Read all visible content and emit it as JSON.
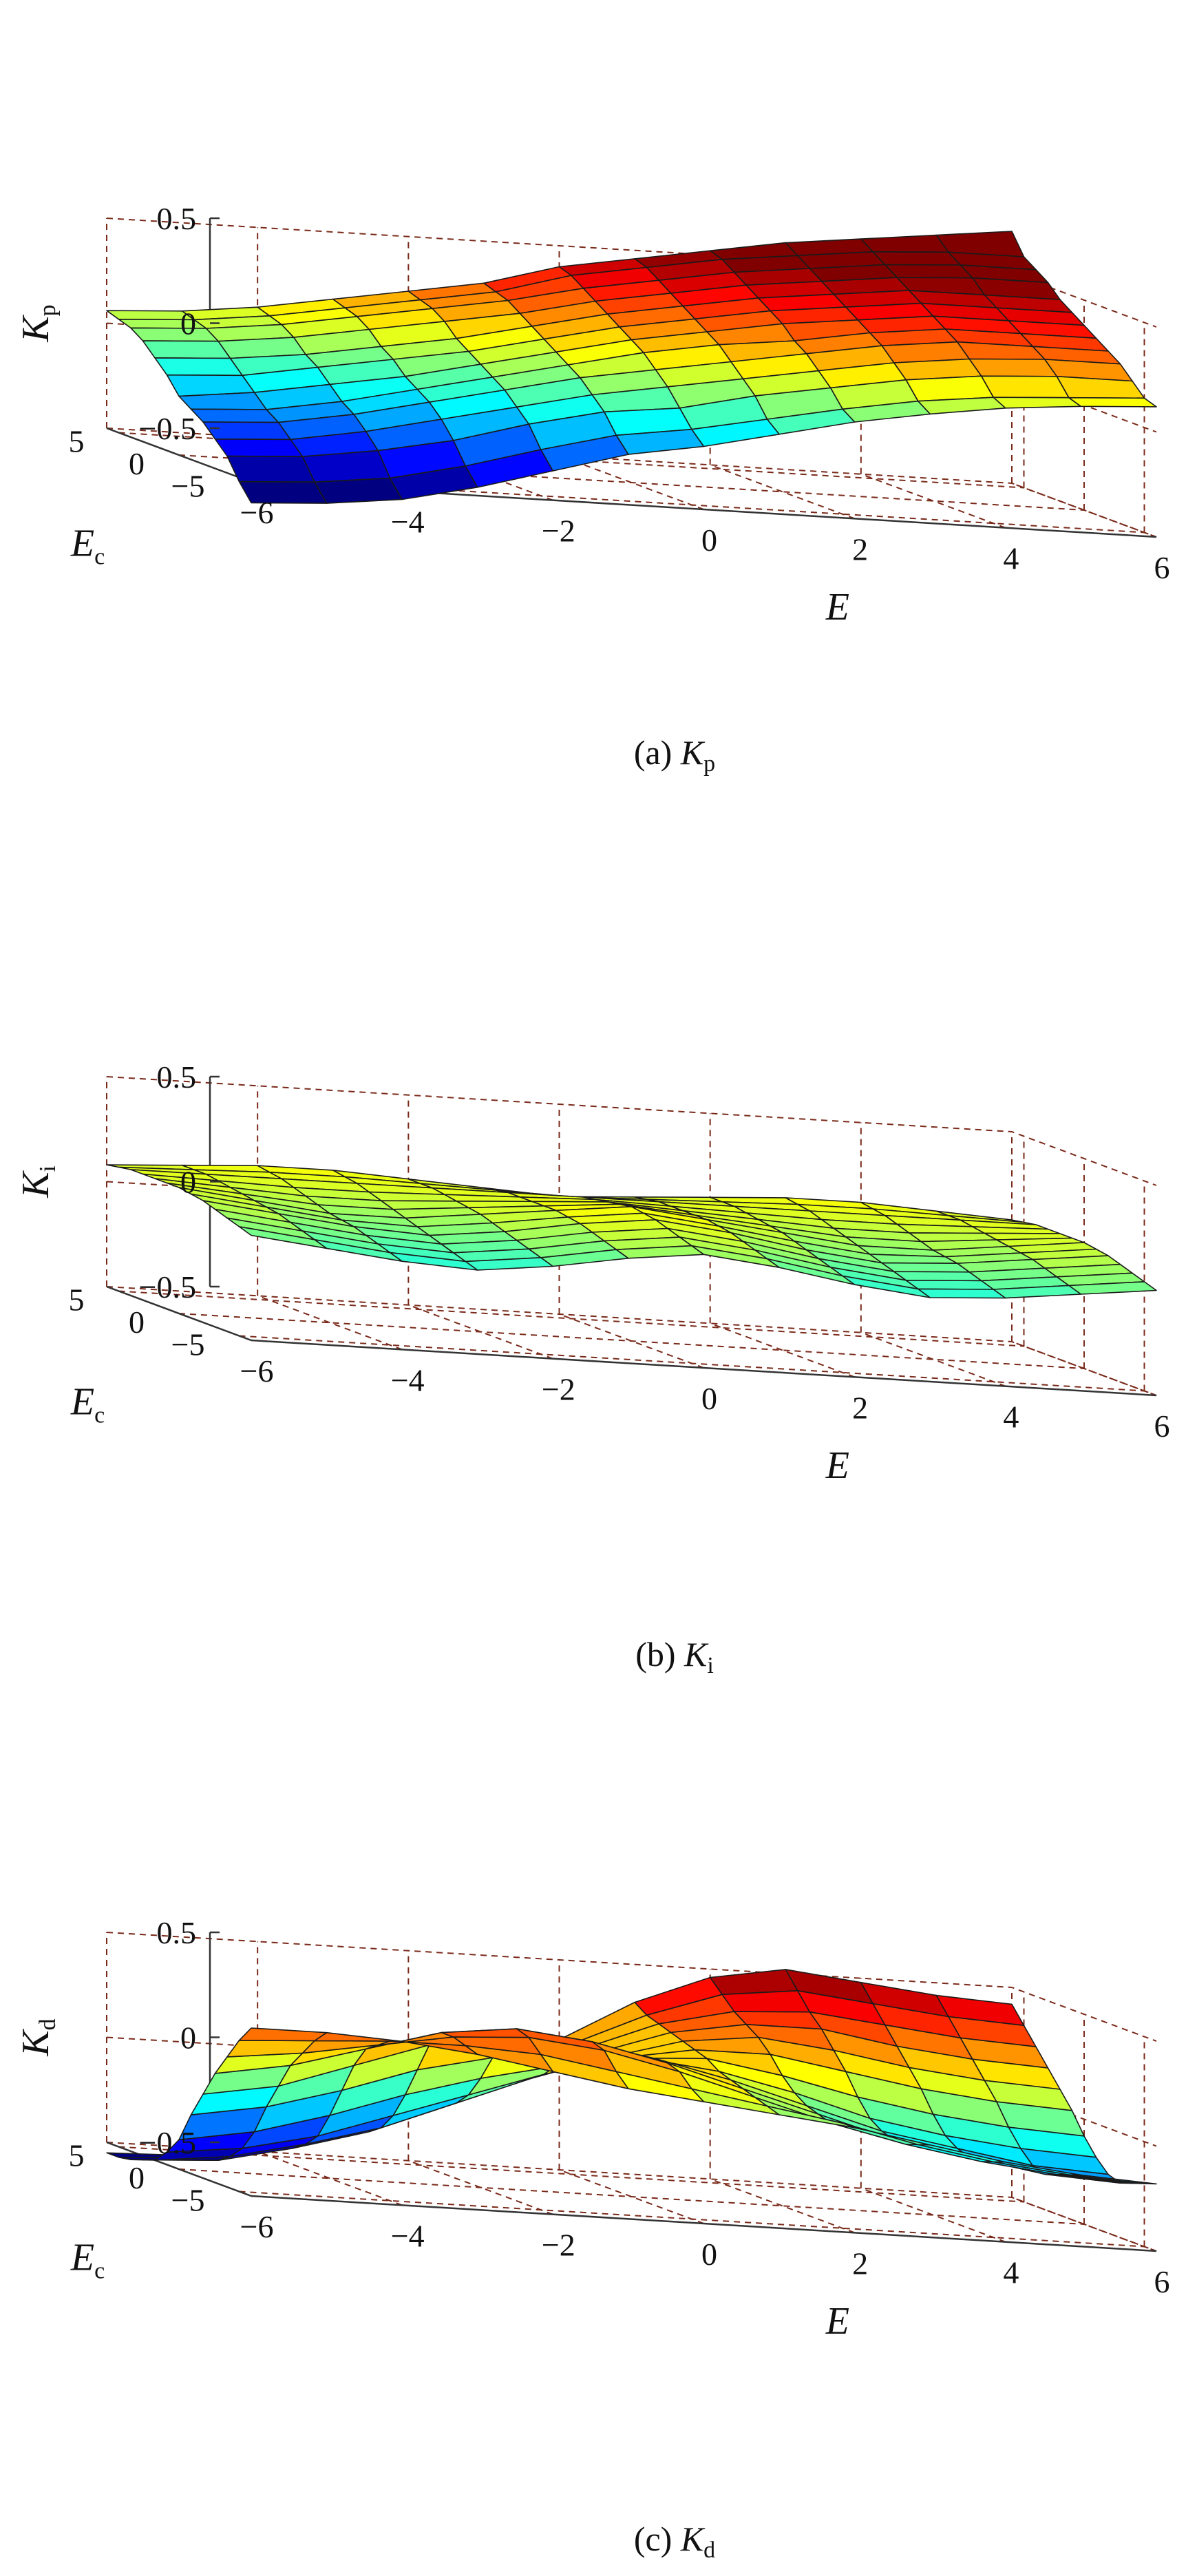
{
  "chart_data": [
    {
      "type": "surface3d",
      "zlabel_main": "K",
      "zlabel_sub": "p",
      "xlabel": "E",
      "ylabel_main": "E",
      "ylabel_sub": "c",
      "caption_prefix": "(a) ",
      "caption_main": "K",
      "caption_sub": "p",
      "xlim": [
        -6,
        6
      ],
      "ylim": [
        -6,
        6
      ],
      "zlim": [
        -0.5,
        0.5
      ],
      "x_ticks": [
        "−6",
        "−4",
        "−2",
        "0",
        "2",
        "4",
        "6"
      ],
      "y_ticks": [
        "5",
        "0",
        "−5"
      ],
      "z_ticks": [
        "0.5",
        "0",
        "−0.5"
      ],
      "x": [
        -6,
        -5,
        -4,
        -3,
        -2,
        -1,
        0,
        1,
        2,
        3,
        4,
        5,
        6
      ],
      "y": [
        -6,
        -5,
        -4,
        -3,
        -2,
        -1,
        0,
        1,
        2,
        3,
        4,
        5,
        6
      ],
      "z": [
        [
          -0.6,
          -0.58,
          -0.54,
          -0.46,
          -0.36,
          -0.26,
          -0.2,
          -0.12,
          -0.04,
          0.02,
          0.07,
          0.1,
          0.12
        ],
        [
          -0.52,
          -0.5,
          -0.46,
          -0.38,
          -0.28,
          -0.19,
          -0.14,
          -0.07,
          0.0,
          0.06,
          0.1,
          0.12,
          0.14
        ],
        [
          -0.42,
          -0.4,
          -0.35,
          -0.28,
          -0.18,
          -0.1,
          -0.06,
          0.02,
          0.08,
          0.14,
          0.18,
          0.2,
          0.2
        ],
        [
          -0.36,
          -0.34,
          -0.28,
          -0.2,
          -0.12,
          -0.04,
          0.02,
          0.08,
          0.14,
          0.2,
          0.24,
          0.26,
          0.26
        ],
        [
          -0.3,
          -0.28,
          -0.22,
          -0.14,
          -0.06,
          0.02,
          0.08,
          0.14,
          0.2,
          0.26,
          0.3,
          0.3,
          0.3
        ],
        [
          -0.26,
          -0.24,
          -0.18,
          -0.1,
          -0.02,
          0.06,
          0.14,
          0.2,
          0.24,
          0.3,
          0.34,
          0.34,
          0.34
        ],
        [
          -0.22,
          -0.18,
          -0.12,
          -0.06,
          0.02,
          0.1,
          0.18,
          0.24,
          0.3,
          0.34,
          0.38,
          0.38,
          0.38
        ],
        [
          -0.14,
          -0.12,
          -0.06,
          0.0,
          0.06,
          0.14,
          0.22,
          0.28,
          0.34,
          0.38,
          0.42,
          0.42,
          0.42
        ],
        [
          -0.08,
          -0.06,
          -0.02,
          0.04,
          0.1,
          0.18,
          0.26,
          0.32,
          0.38,
          0.42,
          0.46,
          0.46,
          0.46
        ],
        [
          -0.02,
          0.0,
          0.04,
          0.1,
          0.16,
          0.22,
          0.3,
          0.36,
          0.42,
          0.46,
          0.5,
          0.52,
          0.52
        ],
        [
          0.02,
          0.04,
          0.08,
          0.14,
          0.2,
          0.26,
          0.34,
          0.4,
          0.46,
          0.5,
          0.54,
          0.56,
          0.56
        ],
        [
          0.04,
          0.06,
          0.1,
          0.16,
          0.22,
          0.28,
          0.38,
          0.44,
          0.5,
          0.54,
          0.58,
          0.6,
          0.6
        ],
        [
          0.06,
          0.08,
          0.12,
          0.18,
          0.24,
          0.3,
          0.4,
          0.46,
          0.52,
          0.58,
          0.62,
          0.66,
          0.7
        ]
      ]
    },
    {
      "type": "surface3d",
      "zlabel_main": "K",
      "zlabel_sub": "i",
      "xlabel": "E",
      "ylabel_main": "E",
      "ylabel_sub": "c",
      "caption_prefix": "(b) ",
      "caption_main": "K",
      "caption_sub": "i",
      "xlim": [
        -6,
        6
      ],
      "ylim": [
        -6,
        6
      ],
      "zlim": [
        -0.5,
        0.5
      ],
      "x_ticks": [
        "−6",
        "−4",
        "−2",
        "0",
        "2",
        "4",
        "6"
      ],
      "y_ticks": [
        "5",
        "0",
        "−5"
      ],
      "z_ticks": [
        "0.5",
        "0",
        "−0.5"
      ],
      "x": [
        -6,
        -5,
        -4,
        -3,
        -2,
        -1,
        0,
        1,
        2,
        3,
        4,
        5,
        6
      ],
      "y": [
        -6,
        -5,
        -4,
        -3,
        -2,
        -1,
        0,
        1,
        2,
        3,
        4,
        5,
        6
      ],
      "z": [
        [
          0.0,
          -0.04,
          -0.08,
          -0.1,
          -0.06,
          0.0,
          0.04,
          0.0,
          -0.06,
          -0.1,
          -0.08,
          -0.04,
          0.0
        ],
        [
          0.02,
          -0.02,
          -0.06,
          -0.08,
          -0.04,
          0.02,
          0.06,
          0.02,
          -0.04,
          -0.08,
          -0.06,
          -0.02,
          0.02
        ],
        [
          0.04,
          0.0,
          -0.04,
          -0.06,
          -0.02,
          0.04,
          0.08,
          0.04,
          -0.02,
          -0.06,
          -0.04,
          0.0,
          0.04
        ],
        [
          0.06,
          0.02,
          -0.02,
          -0.04,
          0.0,
          0.06,
          0.1,
          0.06,
          0.0,
          -0.04,
          -0.02,
          0.02,
          0.06
        ],
        [
          0.08,
          0.04,
          0.0,
          -0.02,
          0.02,
          0.08,
          0.12,
          0.08,
          0.02,
          -0.02,
          0.0,
          0.04,
          0.08
        ],
        [
          0.09,
          0.05,
          0.01,
          0.0,
          0.04,
          0.09,
          0.13,
          0.09,
          0.04,
          0.0,
          0.01,
          0.05,
          0.09
        ],
        [
          0.1,
          0.06,
          0.02,
          0.02,
          0.06,
          0.1,
          0.14,
          0.1,
          0.06,
          0.02,
          0.02,
          0.06,
          0.1
        ],
        [
          0.1,
          0.07,
          0.04,
          0.04,
          0.07,
          0.1,
          0.13,
          0.1,
          0.07,
          0.04,
          0.04,
          0.07,
          0.1
        ],
        [
          0.1,
          0.08,
          0.06,
          0.06,
          0.08,
          0.1,
          0.12,
          0.1,
          0.08,
          0.06,
          0.06,
          0.08,
          0.1
        ],
        [
          0.1,
          0.09,
          0.08,
          0.08,
          0.09,
          0.1,
          0.11,
          0.1,
          0.09,
          0.08,
          0.08,
          0.09,
          0.1
        ],
        [
          0.1,
          0.1,
          0.1,
          0.1,
          0.1,
          0.1,
          0.1,
          0.1,
          0.1,
          0.1,
          0.1,
          0.1,
          0.1
        ],
        [
          0.09,
          0.1,
          0.11,
          0.11,
          0.1,
          0.09,
          0.08,
          0.09,
          0.1,
          0.11,
          0.11,
          0.1,
          0.09
        ],
        [
          0.08,
          0.1,
          0.12,
          0.12,
          0.1,
          0.08,
          0.06,
          0.08,
          0.1,
          0.12,
          0.12,
          0.1,
          0.08
        ]
      ]
    },
    {
      "type": "surface3d",
      "zlabel_main": "K",
      "zlabel_sub": "d",
      "xlabel": "E",
      "ylabel_main": "E",
      "ylabel_sub": "c",
      "caption_prefix": "(c) ",
      "caption_main": "K",
      "caption_sub": "d",
      "xlim": [
        -6,
        6
      ],
      "ylim": [
        -6,
        6
      ],
      "zlim": [
        -0.5,
        0.5
      ],
      "x_ticks": [
        "−6",
        "−4",
        "−2",
        "0",
        "2",
        "4",
        "6"
      ],
      "y_ticks": [
        "5",
        "0",
        "−5"
      ],
      "z_ticks": [
        "0.5",
        "0",
        "−0.5"
      ],
      "x": [
        -6,
        -5,
        -4,
        -3,
        -2,
        -1,
        0,
        1,
        2,
        3,
        4,
        5,
        6
      ],
      "y": [
        -6,
        -5,
        -4,
        -3,
        -2,
        -1,
        0,
        1,
        2,
        3,
        4,
        5,
        6
      ],
      "z": [
        [
          0.3,
          0.3,
          0.28,
          0.24,
          0.18,
          0.12,
          0.08,
          0.04,
          0.0,
          -0.06,
          -0.12,
          -0.16,
          -0.18
        ],
        [
          0.22,
          0.24,
          0.26,
          0.26,
          0.24,
          0.18,
          0.12,
          0.06,
          0.0,
          -0.08,
          -0.14,
          -0.18,
          -0.2
        ],
        [
          0.12,
          0.16,
          0.22,
          0.28,
          0.3,
          0.26,
          0.18,
          0.08,
          -0.02,
          -0.1,
          -0.16,
          -0.2,
          -0.22
        ],
        [
          0.02,
          0.08,
          0.18,
          0.28,
          0.32,
          0.28,
          0.2,
          0.1,
          0.0,
          -0.1,
          -0.16,
          -0.22,
          -0.24
        ],
        [
          -0.1,
          -0.04,
          0.08,
          0.2,
          0.26,
          0.26,
          0.2,
          0.12,
          0.02,
          -0.08,
          -0.14,
          -0.2,
          -0.22
        ],
        [
          -0.22,
          -0.16,
          -0.06,
          0.06,
          0.14,
          0.18,
          0.18,
          0.14,
          0.06,
          -0.04,
          -0.1,
          -0.14,
          -0.16
        ],
        [
          -0.36,
          -0.3,
          -0.2,
          -0.08,
          0.02,
          0.1,
          0.16,
          0.18,
          0.12,
          0.04,
          -0.02,
          -0.06,
          -0.08
        ],
        [
          -0.44,
          -0.4,
          -0.32,
          -0.2,
          -0.08,
          0.04,
          0.14,
          0.2,
          0.2,
          0.14,
          0.08,
          0.04,
          0.02
        ],
        [
          -0.5,
          -0.46,
          -0.38,
          -0.28,
          -0.14,
          0.0,
          0.12,
          0.22,
          0.26,
          0.22,
          0.16,
          0.12,
          0.1
        ],
        [
          -0.52,
          -0.5,
          -0.42,
          -0.32,
          -0.18,
          -0.02,
          0.12,
          0.24,
          0.3,
          0.3,
          0.24,
          0.2,
          0.18
        ],
        [
          -0.54,
          -0.52,
          -0.44,
          -0.34,
          -0.2,
          -0.04,
          0.12,
          0.26,
          0.34,
          0.36,
          0.32,
          0.28,
          0.26
        ],
        [
          -0.55,
          -0.53,
          -0.46,
          -0.36,
          -0.22,
          -0.06,
          0.12,
          0.28,
          0.4,
          0.44,
          0.4,
          0.36,
          0.34
        ],
        [
          -0.55,
          -0.54,
          -0.48,
          -0.38,
          -0.24,
          -0.08,
          0.12,
          0.32,
          0.46,
          0.52,
          0.48,
          0.44,
          0.42
        ]
      ]
    }
  ]
}
